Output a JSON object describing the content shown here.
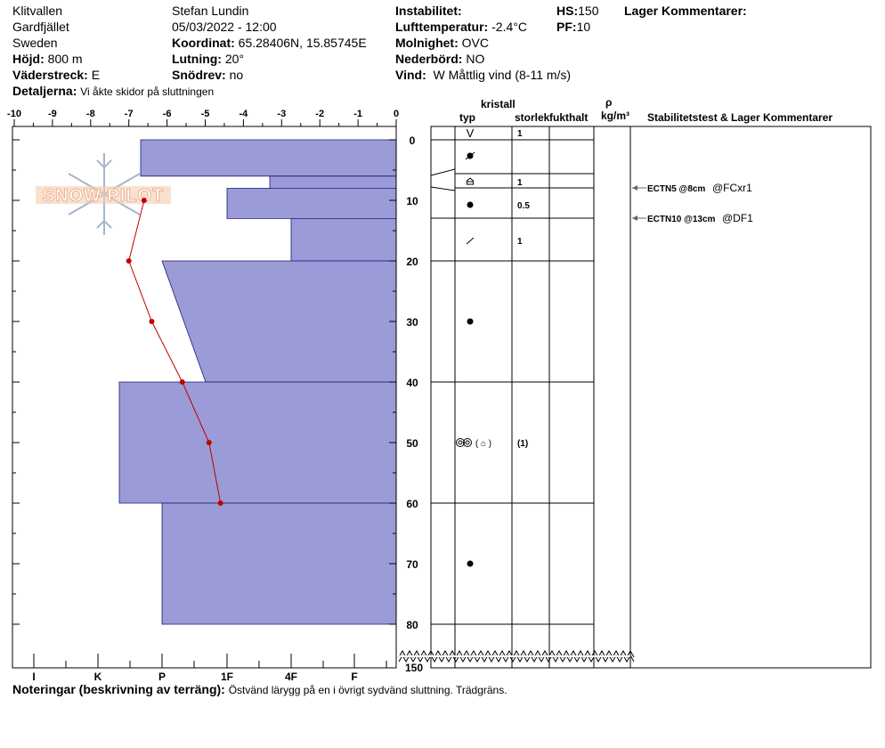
{
  "header": {
    "location": "Klitvallen",
    "area": "Gardfjället",
    "country": "Sweden",
    "elevation_label": "Höjd:",
    "elevation": "800 m",
    "aspect_label": "Väderstreck:",
    "aspect": "E",
    "details_label": "Detaljerna:",
    "details": "Vi åkte skidor på sluttningen",
    "observer": "Stefan Lundin",
    "datetime": "05/03/2022 - 12:00",
    "coord_label": "Koordinat:",
    "coord": "65.28406N, 15.85745E",
    "slope_label": "Lutning:",
    "slope": "20°",
    "drift_label": "Snödrev:",
    "drift": "no",
    "instability_label": "Instabilitet:",
    "airtemp_label": "Lufttemperatur:",
    "airtemp": "-2.4°C",
    "cloud_label": "Molnighet:",
    "cloud": "OVC",
    "precip_label": "Nederbörd:",
    "precip": "NO",
    "wind_label": "Vind:",
    "wind": "W Måttlig vind (8-11 m/s)",
    "hs_label": "HS:",
    "hs": "150",
    "pf_label": "PF:",
    "pf": "10",
    "layer_comments_label": "Lager Kommentarer:"
  },
  "table_headers": {
    "kristall": "kristall",
    "typ": "typ",
    "storlek": "storlek",
    "fukthalt": "fukthalt",
    "rho": "ρ",
    "density_unit": "kg/m³",
    "comments": "Stabilitetstest & Lager Kommentarer"
  },
  "layers_table": [
    {
      "type_symbol": "V",
      "size": "1"
    },
    {
      "type_symbol": "decomposing-icon",
      "size": ""
    },
    {
      "type_symbol": "faceted-icon",
      "size": "1"
    },
    {
      "type_symbol": "rounded-icon",
      "size": "0.5"
    },
    {
      "type_symbol": "precip-particle-icon",
      "size": "1"
    },
    {
      "type_symbol": "rounded-icon",
      "size": ""
    },
    {
      "type_symbol": "melt-forms-faceted-icon",
      "size": "(1)"
    },
    {
      "type_symbol": "rounded-icon",
      "size": ""
    }
  ],
  "stability_tests": [
    {
      "depth": 8,
      "test": "ECTN5 @8cm",
      "note": "@FCxr1"
    },
    {
      "depth": 13,
      "test": "ECTN10 @13cm",
      "note": "@DF1"
    }
  ],
  "notes_label": "Noteringar (beskrivning av terräng):",
  "notes": "Östvänd lärygg på en i övrigt sydvänd sluttning. Trädgräns.",
  "logo_text": "SNOW PILOT",
  "colors": {
    "hardness_fill": "#9b9bd7",
    "temp_line": "#c00000",
    "logo": "#f0a070"
  },
  "chart_data": {
    "type": "bar",
    "temp_axis": {
      "ticks": [
        "-10",
        "-9",
        "-8",
        "-7",
        "-6",
        "-5",
        "-4",
        "-3",
        "-2",
        "-1",
        "0"
      ],
      "range": [
        -10,
        0
      ]
    },
    "depth_axis": {
      "ticks": [
        "0",
        "10",
        "20",
        "30",
        "40",
        "50",
        "60",
        "70",
        "80"
      ],
      "range": [
        0,
        80
      ],
      "break_label": "150"
    },
    "hardness_axis": {
      "ticks": [
        "I",
        "K",
        "P",
        "1F",
        "4F",
        "F"
      ]
    },
    "hardness_layers": [
      {
        "top": 0,
        "bottom": 6,
        "hardness_top": "P+",
        "hardness_bottom": "P+"
      },
      {
        "top": 6,
        "bottom": 8,
        "hardness_top": "4F+",
        "hardness_bottom": "4F+"
      },
      {
        "top": 8,
        "bottom": 13,
        "hardness_top": "1F",
        "hardness_bottom": "1F"
      },
      {
        "top": 13,
        "bottom": 20,
        "hardness_top": "4F",
        "hardness_bottom": "4F"
      },
      {
        "top": 20,
        "bottom": 40,
        "hardness_top": "P",
        "hardness_bottom": "1F+"
      },
      {
        "top": 40,
        "bottom": 60,
        "hardness_top": "K-",
        "hardness_bottom": "K-"
      },
      {
        "top": 60,
        "bottom": 80,
        "hardness_top": "P",
        "hardness_bottom": "P"
      }
    ],
    "temperature_profile": [
      {
        "depth": 10,
        "temp": -6.6
      },
      {
        "depth": 20,
        "temp": -7.0
      },
      {
        "depth": 30,
        "temp": -6.4
      },
      {
        "depth": 40,
        "temp": -5.6
      },
      {
        "depth": 50,
        "temp": -4.9
      },
      {
        "depth": 60,
        "temp": -4.6
      }
    ]
  }
}
